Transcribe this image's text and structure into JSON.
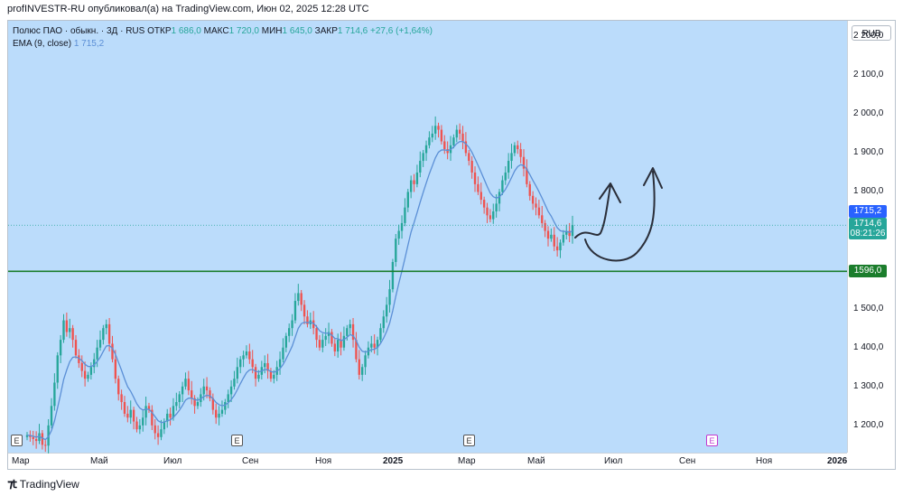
{
  "caption": "profINVESTR-RU опубликовал(а) на TradingView.com, Июн 02, 2025 12:28 UTC",
  "legend": {
    "symbol": "Полюс ПАО · обыкн. · 3Д · RUS",
    "o_label": "ОТКР",
    "o_value": "1 686,0",
    "h_label": "МАКС",
    "h_value": "1 720,0",
    "l_label": "МИН",
    "l_value": "1 645,0",
    "c_label": "ЗАКР",
    "c_value": "1 714,6",
    "change": "+27,6 (+1,64%)",
    "ema_label": "EMA (9, close)",
    "ema_value": "1 715,2"
  },
  "currency_button": "RUB",
  "price_axis": [
    {
      "label": "2 200,0",
      "value": 2200
    },
    {
      "label": "2 100,0",
      "value": 2100
    },
    {
      "label": "2 000,0",
      "value": 2000
    },
    {
      "label": "1 900,0",
      "value": 1900
    },
    {
      "label": "1 800,0",
      "value": 1800
    },
    {
      "label": "1 500,0",
      "value": 1500
    },
    {
      "label": "1 400,0",
      "value": 1400
    },
    {
      "label": "1 300,0",
      "value": 1300
    },
    {
      "label": "1 200,0",
      "value": 1200
    }
  ],
  "time_axis": [
    {
      "label": "Мар",
      "bold": false
    },
    {
      "label": "Май",
      "bold": false
    },
    {
      "label": "Июл",
      "bold": false
    },
    {
      "label": "Сен",
      "bold": false
    },
    {
      "label": "Ноя",
      "bold": false
    },
    {
      "label": "2025",
      "bold": true
    },
    {
      "label": "Мар",
      "bold": false
    },
    {
      "label": "Май",
      "bold": false
    },
    {
      "label": "Июл",
      "bold": false
    },
    {
      "label": "Сен",
      "bold": false
    },
    {
      "label": "Ноя",
      "bold": false
    },
    {
      "label": "2026",
      "bold": true
    }
  ],
  "badges": {
    "ema": {
      "value": "1715,2",
      "color": "#2962ff"
    },
    "last": {
      "value": "1714,6",
      "countdown": "08:21:26",
      "color": "#26a69a"
    },
    "level": {
      "value": "1596,0",
      "color": "#1b7d2c"
    }
  },
  "events": [
    "E",
    "E",
    "E",
    "E"
  ],
  "colors": {
    "up": "#26a69a",
    "down": "#ef5350",
    "ema": "#5b8fd6",
    "level": "#1b7d2c",
    "plot_bg": "#bbdcfb"
  },
  "footer": {
    "brand": "TradingView",
    "logo_icon": "tradingview-logo-icon"
  },
  "chart_data": {
    "type": "candlestick",
    "timeframe": "3D",
    "ylim": [
      1130,
      2240
    ],
    "horizontal_level": 1596,
    "ema_last": 1715.2,
    "last_close": 1714.6,
    "closes": [
      1175,
      1170,
      1165,
      1160,
      1180,
      1150,
      1148,
      1200,
      1250,
      1310,
      1380,
      1420,
      1470,
      1440,
      1450,
      1420,
      1380,
      1360,
      1340,
      1320,
      1330,
      1350,
      1370,
      1400,
      1420,
      1450,
      1460,
      1410,
      1370,
      1320,
      1280,
      1260,
      1230,
      1220,
      1240,
      1210,
      1190,
      1200,
      1220,
      1250,
      1240,
      1200,
      1180,
      1170,
      1190,
      1210,
      1230,
      1220,
      1250,
      1260,
      1280,
      1300,
      1320,
      1290,
      1270,
      1250,
      1260,
      1280,
      1300,
      1290,
      1270,
      1240,
      1220,
      1230,
      1240,
      1260,
      1280,
      1300,
      1320,
      1350,
      1370,
      1380,
      1390,
      1370,
      1350,
      1320,
      1330,
      1350,
      1360,
      1340,
      1320,
      1330,
      1350,
      1370,
      1400,
      1430,
      1450,
      1470,
      1520,
      1540,
      1510,
      1480,
      1460,
      1470,
      1450,
      1420,
      1400,
      1420,
      1430,
      1440,
      1410,
      1390,
      1420,
      1400,
      1430,
      1450,
      1460,
      1420,
      1370,
      1330,
      1350,
      1380,
      1400,
      1410,
      1400,
      1420,
      1450,
      1480,
      1510,
      1550,
      1620,
      1680,
      1700,
      1720,
      1760,
      1800,
      1830,
      1820,
      1850,
      1880,
      1900,
      1920,
      1940,
      1950,
      1970,
      1960,
      1930,
      1910,
      1900,
      1920,
      1940,
      1960,
      1950,
      1930,
      1900,
      1880,
      1850,
      1820,
      1800,
      1780,
      1760,
      1740,
      1730,
      1750,
      1770,
      1800,
      1830,
      1850,
      1880,
      1900,
      1920,
      1910,
      1890,
      1860,
      1820,
      1790,
      1770,
      1760,
      1740,
      1720,
      1700,
      1680,
      1690,
      1660,
      1650,
      1670,
      1690,
      1700,
      1687,
      1714.6
    ]
  },
  "drawings": {
    "type": "hand-drawn-arrows",
    "count": 2
  }
}
